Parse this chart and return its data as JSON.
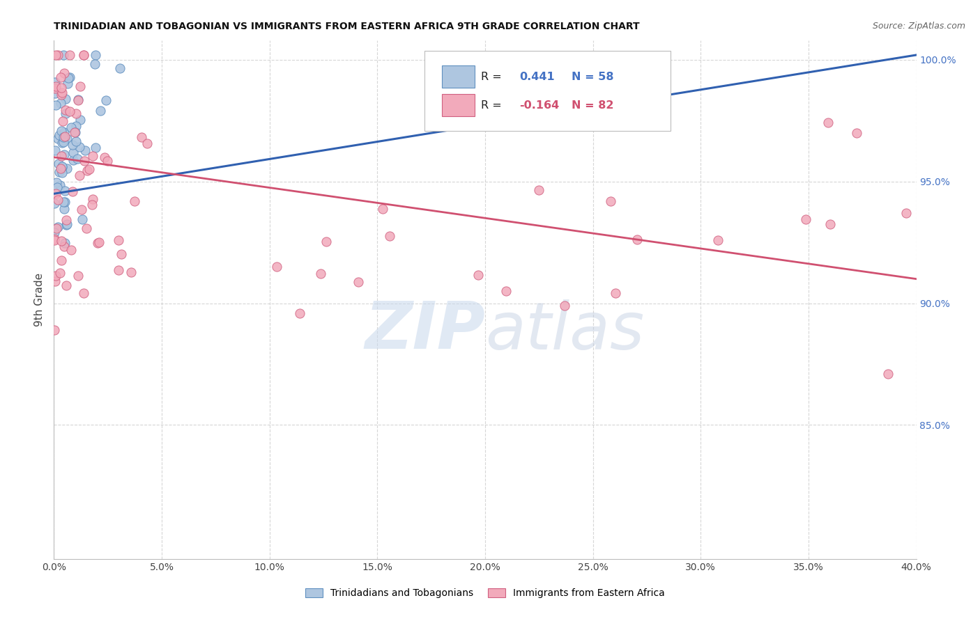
{
  "title": "TRINIDADIAN AND TOBAGONIAN VS IMMIGRANTS FROM EASTERN AFRICA 9TH GRADE CORRELATION CHART",
  "source": "Source: ZipAtlas.com",
  "ylabel": "9th Grade",
  "xlim": [
    0.0,
    0.4
  ],
  "ylim": [
    0.795,
    1.008
  ],
  "blue_R": 0.441,
  "blue_N": 58,
  "pink_R": -0.164,
  "pink_N": 82,
  "blue_color": "#aec6e0",
  "pink_color": "#f2aabb",
  "blue_edge_color": "#6090c0",
  "pink_edge_color": "#d06080",
  "blue_line_color": "#3060b0",
  "pink_line_color": "#d05070",
  "watermark_zip_color": "#c8d8ec",
  "watermark_atlas_color": "#c0cce0",
  "legend_label_blue": "Trinidadians and Tobagonians",
  "legend_label_pink": "Immigrants from Eastern Africa",
  "y_tick_vals": [
    1.0,
    0.95,
    0.9,
    0.85
  ],
  "x_tick_count": 9,
  "title_fontsize": 10,
  "tick_fontsize": 10,
  "legend_fontsize": 10,
  "source_fontsize": 9,
  "scatter_size": 90,
  "blue_line_start_y": 0.945,
  "blue_line_end_y": 1.002,
  "pink_line_start_y": 0.96,
  "pink_line_end_y": 0.91
}
